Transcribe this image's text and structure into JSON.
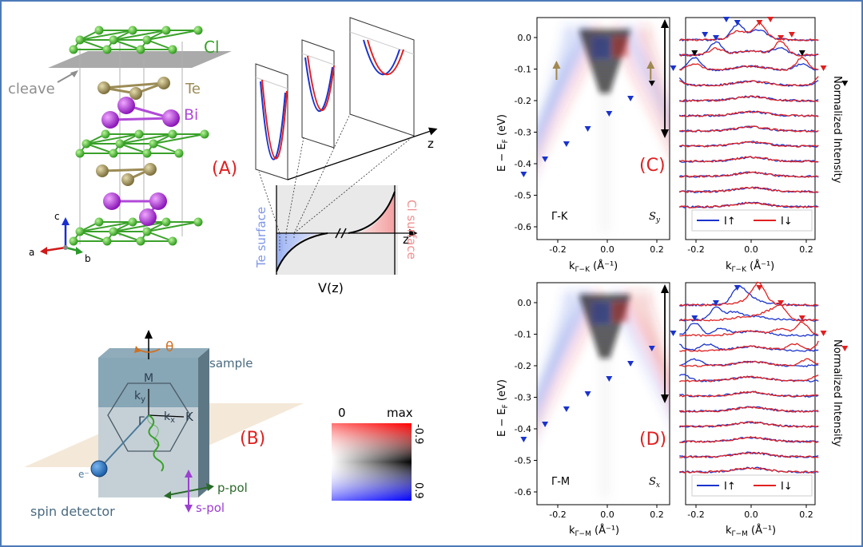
{
  "panelA": {
    "label": "(A)",
    "cl": "Cl",
    "te": "Te",
    "bi": "Bi",
    "cleave": "cleave",
    "axis_a": "a",
    "axis_b": "b",
    "axis_c": "c",
    "z1": "z",
    "z2": "z",
    "te_surface": "Te surface",
    "cl_surface": "Cl surface",
    "potential": "V(z)"
  },
  "panelB": {
    "label": "(B)",
    "theta": "θ",
    "sample": "sample",
    "M": "M",
    "ky": "k",
    "ky_sub": "y",
    "kx": "k",
    "kx_sub": "x",
    "gamma": "Γ",
    "K": "K",
    "electron": "e⁻",
    "spin_detector": "spin detector",
    "ppol": "p-pol",
    "spol": "s-pol",
    "scale_min": "0",
    "scale_max": "max",
    "scale_top": "-0.9",
    "scale_bottom": "0.9"
  },
  "panelC": {
    "label": "(C)",
    "direction": "Γ-K",
    "spin": "S",
    "spin_sub": "y",
    "ylabel": "E − E",
    "ylabel_sub": "F",
    "ylabel_unit": " (eV)",
    "xlabel": "k",
    "xlabel_sub": "Γ−K",
    "xlabel_unit": " (Å⁻¹)",
    "right_xlabel": "k",
    "right_xlabel_sub": "Γ−K",
    "right_xlabel_unit": " (Å⁻¹)",
    "legend_up": "I↑",
    "legend_down": "I↓",
    "side_label": "Normalized Intensity"
  },
  "panelD": {
    "label": "(D)",
    "direction": "Γ-M",
    "spin": "S",
    "spin_sub": "x",
    "ylabel": "E − E",
    "ylabel_sub": "F",
    "ylabel_unit": " (eV)",
    "xlabel": "k",
    "xlabel_sub": "Γ−M",
    "xlabel_unit": " (Å⁻¹)",
    "right_xlabel": "k",
    "right_xlabel_sub": "Γ−M",
    "right_xlabel_unit": " (Å⁻¹)",
    "legend_up": "I↑",
    "legend_down": "I↓",
    "side_label": "Normalized Intensity"
  },
  "axes": {
    "y_ticks": [
      "0.0",
      "-0.1",
      "-0.2",
      "-0.3",
      "-0.4",
      "-0.5",
      "-0.6"
    ],
    "x_ticks": [
      "-0.2",
      "0.0",
      "0.2"
    ]
  },
  "colors": {
    "spin_up": "#1a33cc",
    "spin_down": "#e02020",
    "label_red": "#e02020",
    "cl_green": "#3aa12a",
    "te_gold": "#9b8c55",
    "bi_purple": "#9b2fc9"
  }
}
